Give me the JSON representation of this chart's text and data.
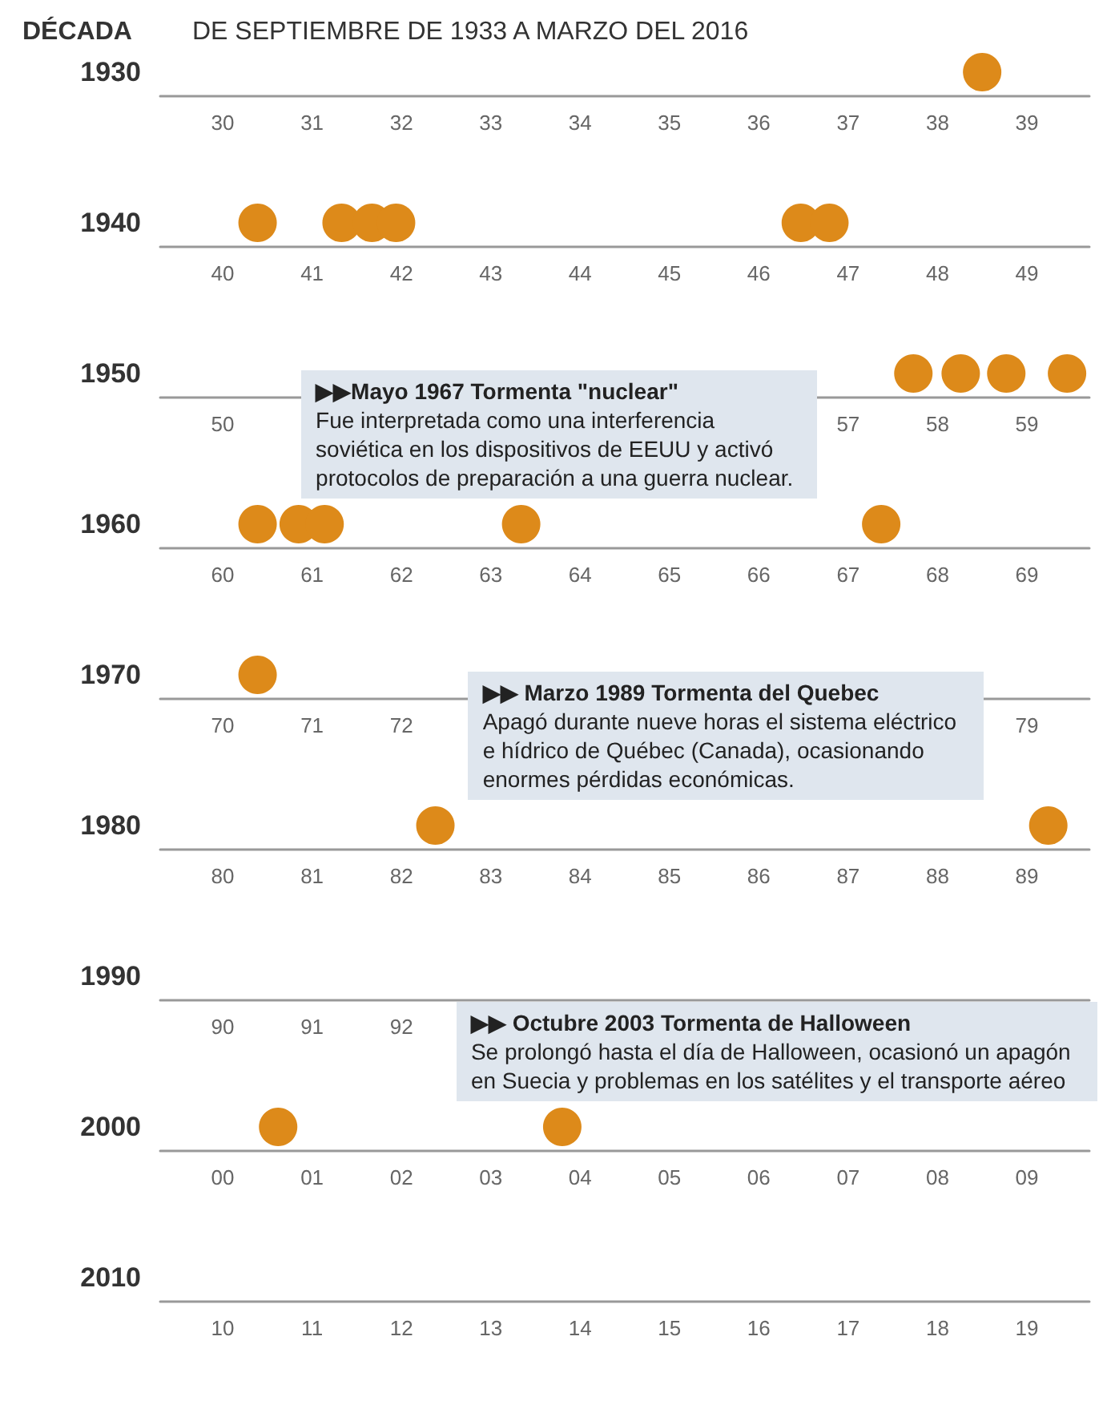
{
  "chart_data": [
    {
      "type": "scatter",
      "orientation": "horizontal",
      "title": "DE SEPTIEMBRE DE 1933 A MARZO DEL 2016",
      "annotations": [
        "DÉCADA"
      ],
      "categories": [
        "1930"
      ],
      "marker": "circle",
      "xlim": [
        1929.3,
        1939.7
      ],
      "xticks": [
        {
          "value": 1930,
          "label": "30"
        },
        {
          "value": 1931,
          "label": "31"
        },
        {
          "value": 1932,
          "label": "32"
        },
        {
          "value": 1933,
          "label": "33"
        },
        {
          "value": 1934,
          "label": "34"
        },
        {
          "value": 1935,
          "label": "35"
        },
        {
          "value": 1936,
          "label": "36"
        },
        {
          "value": 1937,
          "label": "37"
        },
        {
          "value": 1938,
          "label": "38"
        },
        {
          "value": 1939,
          "label": "39"
        }
      ],
      "series": [
        {
          "color": "#dd8a1a",
          "values": [
            1938.5
          ]
        }
      ]
    },
    {
      "type": "scatter",
      "orientation": "horizontal",
      "categories": [
        "1940"
      ],
      "marker": "circle",
      "xlim": [
        1939.3,
        1949.7
      ],
      "xticks": [
        {
          "value": 1940,
          "label": "40"
        },
        {
          "value": 1941,
          "label": "41"
        },
        {
          "value": 1942,
          "label": "42"
        },
        {
          "value": 1943,
          "label": "43"
        },
        {
          "value": 1944,
          "label": "44"
        },
        {
          "value": 1945,
          "label": "45"
        },
        {
          "value": 1946,
          "label": "46"
        },
        {
          "value": 1947,
          "label": "47"
        },
        {
          "value": 1948,
          "label": "48"
        },
        {
          "value": 1949,
          "label": "49"
        }
      ],
      "series": [
        {
          "color": "#dd8a1a",
          "values": [
            1940.39
          ]
        },
        {
          "color": "#dd8a1a",
          "values": [
            1941.33
          ]
        },
        {
          "color": "#dd8a1a",
          "values": [
            1941.67
          ]
        },
        {
          "color": "#dd8a1a",
          "values": [
            1941.94
          ]
        },
        {
          "color": "#dd8a1a",
          "values": [
            1946.47
          ]
        },
        {
          "color": "#dd8a1a",
          "values": [
            1946.79
          ]
        }
      ]
    },
    {
      "type": "scatter",
      "orientation": "horizontal",
      "categories": [
        "1950"
      ],
      "marker": "circle",
      "xlim": [
        1949.3,
        1959.7
      ],
      "xticks": [
        {
          "value": 1950,
          "label": "50"
        },
        {
          "value": 1957,
          "label": "57"
        },
        {
          "value": 1958,
          "label": "58"
        },
        {
          "value": 1959,
          "label": "59"
        }
      ],
      "series": [
        {
          "color": "#dd8a1a",
          "values": [
            1957.73
          ]
        },
        {
          "color": "#dd8a1a",
          "values": [
            1958.26
          ]
        },
        {
          "color": "#dd8a1a",
          "values": [
            1958.77
          ]
        },
        {
          "color": "#dd8a1a",
          "values": [
            1959.45
          ]
        }
      ]
    },
    {
      "type": "scatter",
      "orientation": "horizontal",
      "categories": [
        "1960"
      ],
      "marker": "circle",
      "xlim": [
        1959.3,
        1969.7
      ],
      "xticks": [
        {
          "value": 1960,
          "label": "60"
        },
        {
          "value": 1961,
          "label": "61"
        },
        {
          "value": 1962,
          "label": "62"
        },
        {
          "value": 1963,
          "label": "63"
        },
        {
          "value": 1964,
          "label": "64"
        },
        {
          "value": 1965,
          "label": "65"
        },
        {
          "value": 1966,
          "label": "66"
        },
        {
          "value": 1967,
          "label": "67"
        },
        {
          "value": 1968,
          "label": "68"
        },
        {
          "value": 1969,
          "label": "69"
        }
      ],
      "series": [
        {
          "color": "#dd8a1a",
          "values": [
            1960.39
          ]
        },
        {
          "color": "#dd8a1a",
          "values": [
            1960.85
          ]
        },
        {
          "color": "#dd8a1a",
          "values": [
            1961.14
          ]
        },
        {
          "color": "#dd8a1a",
          "values": [
            1963.34
          ]
        },
        {
          "color": "#dd8a1a",
          "values": [
            1967.37
          ]
        }
      ],
      "annotations": [
        "▶▶Mayo 1967 Tormenta \"nuclear\"\nFue interpretada como una interferencia soviética en los dispositivos de EEUU y activó protocolos de preparación a una guerra nuclear."
      ]
    },
    {
      "type": "scatter",
      "orientation": "horizontal",
      "categories": [
        "1970"
      ],
      "marker": "circle",
      "xlim": [
        1969.3,
        1979.7
      ],
      "xticks": [
        {
          "value": 1970,
          "label": "70"
        },
        {
          "value": 1971,
          "label": "71"
        },
        {
          "value": 1972,
          "label": "72"
        },
        {
          "value": 1979,
          "label": "79"
        }
      ],
      "series": [
        {
          "color": "#dd8a1a",
          "values": [
            1970.39
          ]
        }
      ]
    },
    {
      "type": "scatter",
      "orientation": "horizontal",
      "categories": [
        "1980"
      ],
      "marker": "circle",
      "xlim": [
        1979.3,
        1989.7
      ],
      "xticks": [
        {
          "value": 1980,
          "label": "80"
        },
        {
          "value": 1981,
          "label": "81"
        },
        {
          "value": 1982,
          "label": "82"
        },
        {
          "value": 1983,
          "label": "83"
        },
        {
          "value": 1984,
          "label": "84"
        },
        {
          "value": 1985,
          "label": "85"
        },
        {
          "value": 1986,
          "label": "86"
        },
        {
          "value": 1987,
          "label": "87"
        },
        {
          "value": 1988,
          "label": "88"
        },
        {
          "value": 1989,
          "label": "89"
        }
      ],
      "series": [
        {
          "color": "#dd8a1a",
          "values": [
            1982.38
          ]
        },
        {
          "color": "#dd8a1a",
          "values": [
            1989.24
          ]
        }
      ],
      "annotations": [
        "▶▶ Marzo 1989 Tormenta del Quebec\nApagó durante nueve horas el sistema eléctrico e hídrico de Québec (Canada), ocasionando enormes pérdidas económicas."
      ]
    },
    {
      "type": "scatter",
      "orientation": "horizontal",
      "categories": [
        "1990"
      ],
      "xlim": [
        1989.3,
        1999.7
      ],
      "xticks": [
        {
          "value": 1990,
          "label": "90"
        },
        {
          "value": 1991,
          "label": "91"
        },
        {
          "value": 1992,
          "label": "92"
        }
      ]
    },
    {
      "type": "scatter",
      "orientation": "horizontal",
      "categories": [
        "2000"
      ],
      "marker": "circle",
      "xlim": [
        1999.3,
        2009.7
      ],
      "xticks": [
        {
          "value": 2000,
          "label": "00"
        },
        {
          "value": 2001,
          "label": "01"
        },
        {
          "value": 2002,
          "label": "02"
        },
        {
          "value": 2003,
          "label": "03"
        },
        {
          "value": 2004,
          "label": "04"
        },
        {
          "value": 2005,
          "label": "05"
        },
        {
          "value": 2006,
          "label": "06"
        },
        {
          "value": 2007,
          "label": "07"
        },
        {
          "value": 2008,
          "label": "08"
        },
        {
          "value": 2009,
          "label": "09"
        }
      ],
      "series": [
        {
          "color": "#dd8a1a",
          "values": [
            2000.62
          ]
        },
        {
          "color": "#dd8a1a",
          "values": [
            2003.8
          ]
        }
      ],
      "annotations": [
        "▶▶ Octubre 2003 Tormenta de Halloween\nSe prolongó hasta el día de Halloween, ocasionó un apagón en Suecia y problemas en los satélites y el transporte aéreo"
      ]
    },
    {
      "type": "scatter",
      "orientation": "horizontal",
      "categories": [
        "2010"
      ],
      "xlim": [
        2009.3,
        2019.7
      ],
      "xticks": [
        {
          "value": 2010,
          "label": "10"
        },
        {
          "value": 2011,
          "label": "11"
        },
        {
          "value": 2012,
          "label": "12"
        },
        {
          "value": 2013,
          "label": "13"
        },
        {
          "value": 2014,
          "label": "14"
        },
        {
          "value": 2015,
          "label": "15"
        },
        {
          "value": 2016,
          "label": "16"
        },
        {
          "value": 2017,
          "label": "17"
        },
        {
          "value": 2018,
          "label": "18"
        },
        {
          "value": 2019,
          "label": "19"
        }
      ]
    }
  ]
}
